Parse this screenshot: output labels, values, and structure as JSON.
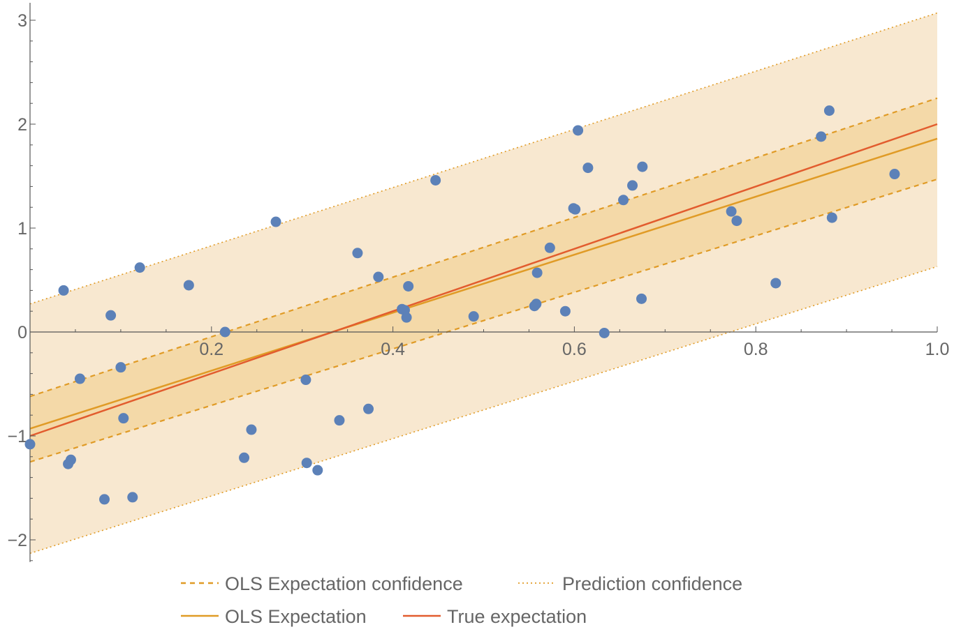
{
  "chart_data": {
    "type": "scatter",
    "title": "",
    "xlabel": "",
    "ylabel": "",
    "xlim": [
      0,
      1
    ],
    "ylim": [
      -2.2,
      3.1
    ],
    "x_ticks": [
      {
        "value": 0.2,
        "label": "0.2"
      },
      {
        "value": 0.4,
        "label": "0.4"
      },
      {
        "value": 0.6,
        "label": "0.6"
      },
      {
        "value": 0.8,
        "label": "0.8"
      },
      {
        "value": 1.0,
        "label": "1.0"
      }
    ],
    "y_ticks": [
      {
        "value": -2,
        "label": "−2"
      },
      {
        "value": -1,
        "label": "−1"
      },
      {
        "value": 0,
        "label": "0"
      },
      {
        "value": 1,
        "label": "1"
      },
      {
        "value": 2,
        "label": "2"
      },
      {
        "value": 3,
        "label": "3"
      }
    ],
    "grid": false,
    "legend_position": "bottom",
    "colors": {
      "points": "#5c81b8",
      "ols": "#e09b26",
      "true": "#e25c2e",
      "prediction_band": "#f8e8d0",
      "confidence_band": "#f4d9a8",
      "axis": "#555555"
    },
    "points": [
      [
        0.0,
        -1.08
      ],
      [
        0.037,
        0.4
      ],
      [
        0.042,
        -1.27
      ],
      [
        0.045,
        -1.23
      ],
      [
        0.055,
        -0.45
      ],
      [
        0.082,
        -1.61
      ],
      [
        0.089,
        0.16
      ],
      [
        0.1,
        -0.34
      ],
      [
        0.103,
        -0.83
      ],
      [
        0.113,
        -1.59
      ],
      [
        0.121,
        0.62
      ],
      [
        0.175,
        0.45
      ],
      [
        0.215,
        0.0
      ],
      [
        0.236,
        -1.21
      ],
      [
        0.244,
        -0.94
      ],
      [
        0.271,
        1.06
      ],
      [
        0.304,
        -0.46
      ],
      [
        0.305,
        -1.26
      ],
      [
        0.317,
        -1.33
      ],
      [
        0.341,
        -0.85
      ],
      [
        0.361,
        0.76
      ],
      [
        0.373,
        -0.74
      ],
      [
        0.384,
        0.53
      ],
      [
        0.41,
        0.22
      ],
      [
        0.413,
        0.21
      ],
      [
        0.415,
        0.14
      ],
      [
        0.417,
        0.44
      ],
      [
        0.447,
        1.46
      ],
      [
        0.489,
        0.15
      ],
      [
        0.556,
        0.25
      ],
      [
        0.558,
        0.27
      ],
      [
        0.559,
        0.57
      ],
      [
        0.573,
        0.81
      ],
      [
        0.59,
        0.2
      ],
      [
        0.599,
        1.19
      ],
      [
        0.601,
        1.18
      ],
      [
        0.604,
        1.94
      ],
      [
        0.615,
        1.58
      ],
      [
        0.633,
        -0.01
      ],
      [
        0.654,
        1.27
      ],
      [
        0.664,
        1.41
      ],
      [
        0.674,
        0.32
      ],
      [
        0.675,
        1.59
      ],
      [
        0.773,
        1.16
      ],
      [
        0.779,
        1.07
      ],
      [
        0.822,
        0.47
      ],
      [
        0.872,
        1.88
      ],
      [
        0.881,
        2.13
      ],
      [
        0.884,
        1.1
      ],
      [
        0.953,
        1.52
      ]
    ],
    "series": [
      {
        "name": "True expectation",
        "style": "solid",
        "x": [
          0,
          1
        ],
        "y": [
          -1.0,
          2.0
        ]
      },
      {
        "name": "OLS Expectation",
        "style": "solid",
        "x": [
          0,
          1
        ],
        "y": [
          -0.93,
          1.86
        ]
      },
      {
        "name": "OLS Expectation confidence",
        "style": "dashed",
        "x": [
          0,
          1
        ],
        "y_lower": [
          -1.25,
          1.47
        ],
        "y_upper": [
          -0.62,
          2.25
        ]
      },
      {
        "name": "Prediction confidence",
        "style": "dotted",
        "x": [
          0,
          1
        ],
        "y_lower": [
          -2.13,
          0.63
        ],
        "y_upper": [
          0.27,
          3.07
        ]
      }
    ],
    "legend": [
      {
        "label": "OLS Expectation confidence",
        "style": "dashed",
        "color": "#e09b26"
      },
      {
        "label": "Prediction confidence",
        "style": "dotted",
        "color": "#e09b26"
      },
      {
        "label": "OLS Expectation",
        "style": "solid",
        "color": "#e09b26"
      },
      {
        "label": "True expectation",
        "style": "solid",
        "color": "#e25c2e"
      }
    ]
  }
}
